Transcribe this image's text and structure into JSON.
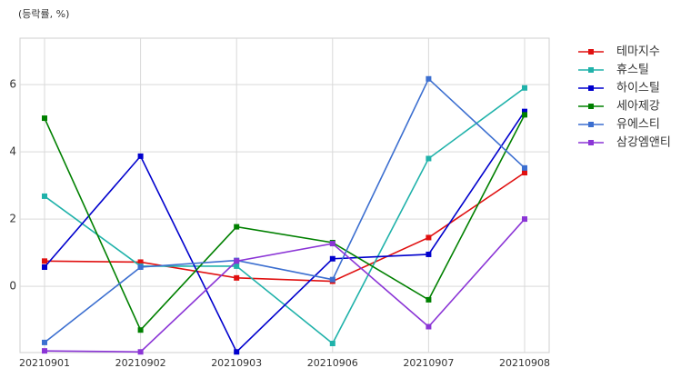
{
  "chart_data": {
    "type": "line",
    "y_label": "(등락률, %)",
    "categories": [
      "20210901",
      "20210902",
      "20210903",
      "20210906",
      "20210907",
      "20210908"
    ],
    "series": [
      {
        "name": "테마지수",
        "color": "#e01010",
        "values": [
          0.75,
          0.72,
          0.25,
          0.15,
          1.45,
          3.38
        ]
      },
      {
        "name": "휴스틸",
        "color": "#20b2aa",
        "values": [
          2.68,
          0.6,
          0.6,
          -1.7,
          3.8,
          5.9
        ]
      },
      {
        "name": "하이스틸",
        "color": "#0000cd",
        "values": [
          0.57,
          3.87,
          -1.95,
          0.82,
          0.95,
          5.2
        ]
      },
      {
        "name": "세아제강",
        "color": "#008000",
        "values": [
          5.0,
          -1.3,
          1.77,
          1.3,
          -0.4,
          5.1
        ]
      },
      {
        "name": "유에스티",
        "color": "#3c6fd0",
        "values": [
          -1.67,
          0.57,
          0.77,
          0.2,
          6.17,
          3.52
        ]
      },
      {
        "name": "삼강엠앤티",
        "color": "#8b35d6",
        "values": [
          -1.92,
          -1.95,
          0.75,
          1.27,
          -1.2,
          2.0
        ]
      }
    ],
    "ylim": [
      -1.97,
      7.38
    ],
    "yticks": [
      0,
      2,
      4,
      6
    ],
    "grid": true,
    "legend": "outside-right"
  }
}
